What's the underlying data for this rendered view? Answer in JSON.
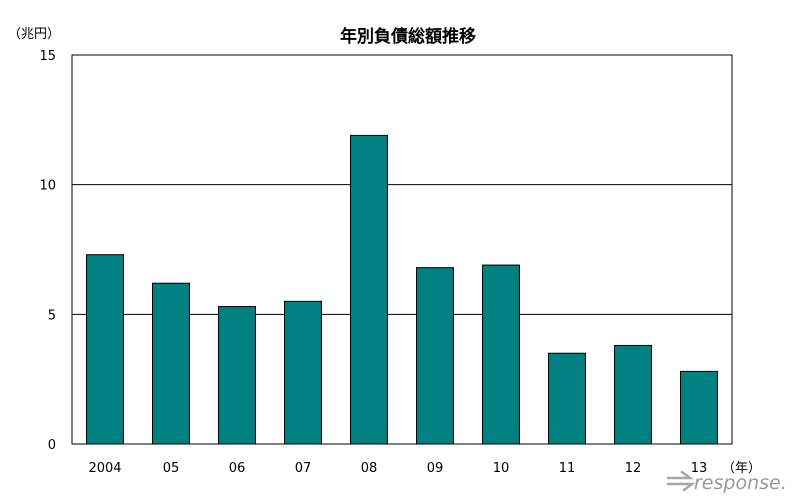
{
  "chart_data": {
    "type": "bar",
    "title": "年別負債総額推移",
    "ylabel": "（兆円）",
    "xlabel": "（年）",
    "categories": [
      "2004",
      "05",
      "06",
      "07",
      "08",
      "09",
      "10",
      "11",
      "12",
      "13"
    ],
    "values": [
      7.3,
      6.2,
      5.3,
      5.5,
      11.9,
      6.8,
      6.9,
      3.5,
      3.8,
      2.8
    ],
    "ylim": [
      0,
      15
    ],
    "yticks": [
      0,
      5,
      10,
      15
    ],
    "grid": true,
    "legend": "none",
    "colors": {
      "bar": "#008080",
      "bar_stroke": "#000000",
      "grid": "#000000",
      "axis": "#000000"
    }
  },
  "watermark": {
    "text": "response."
  }
}
